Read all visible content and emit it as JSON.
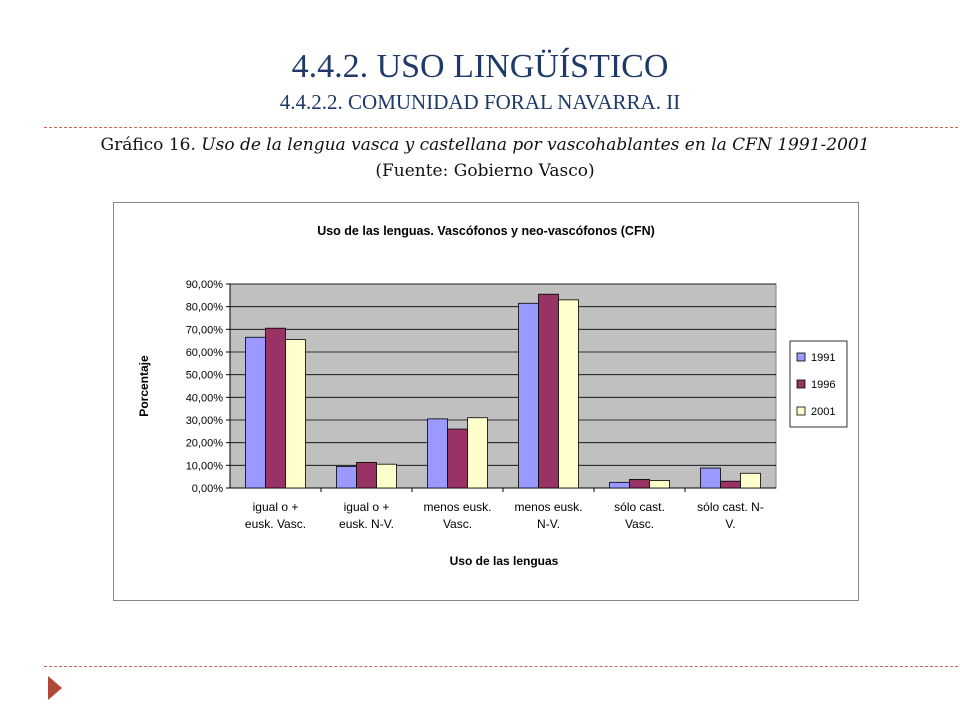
{
  "slide": {
    "title": "4.4.2. USO LINGÜÍSTICO",
    "subtitle": "4.4.2.2. COMUNIDAD FORAL NAVARRA. II",
    "caption_prefix": "Gráfico 16. ",
    "caption_italic": "Uso de la lengua vasca y castellana por vascohablantes en la CFN 1991-2001",
    "caption_suffix": " (Fuente: Gobierno Vasco)"
  },
  "chart_data": {
    "type": "bar",
    "title": "Uso de las lenguas. Vascófonos y neo-vascófonos (CFN)",
    "xlabel": "Uso de las lenguas",
    "ylabel": "Porcentaje",
    "ylim": [
      0,
      90
    ],
    "yticks": [
      "0,00%",
      "10,00%",
      "20,00%",
      "30,00%",
      "40,00%",
      "50,00%",
      "60,00%",
      "70,00%",
      "80,00%",
      "90,00%"
    ],
    "categories": [
      [
        "igual o +",
        "eusk. Vasc."
      ],
      [
        "igual o +",
        "eusk. N-V."
      ],
      [
        "menos eusk.",
        "Vasc."
      ],
      [
        "menos eusk.",
        "N-V."
      ],
      [
        "sólo cast.",
        "Vasc."
      ],
      [
        "sólo cast. N-",
        "V."
      ]
    ],
    "series": [
      {
        "name": "1991",
        "color": "#9999FF",
        "values": [
          66.5,
          9.5,
          30.5,
          81.5,
          2.5,
          8.8
        ]
      },
      {
        "name": "1996",
        "color": "#993366",
        "values": [
          70.5,
          11.3,
          26.0,
          85.5,
          3.8,
          3.0
        ]
      },
      {
        "name": "2001",
        "color": "#FFFFCC",
        "values": [
          65.5,
          10.5,
          31.0,
          83.0,
          3.3,
          6.5
        ]
      }
    ],
    "grid": true,
    "legend": "right",
    "plot_background": "#C0C0C0"
  }
}
